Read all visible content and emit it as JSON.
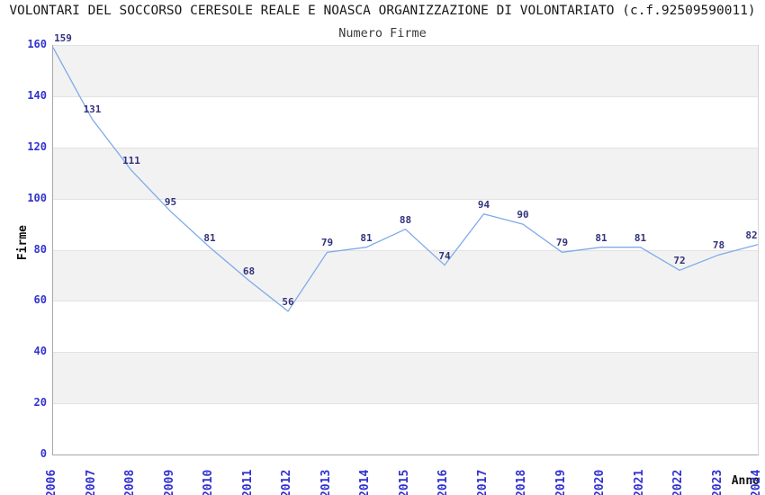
{
  "chart_data": {
    "type": "line",
    "title": "VOLONTARI DEL SOCCORSO CERESOLE REALE E NOASCA ORGANIZZAZIONE DI VOLONTARIATO (c.f.92509590011)",
    "subtitle": "Numero Firme",
    "xlabel": "Anno",
    "ylabel": "Firme",
    "categories": [
      "2006",
      "2007",
      "2008",
      "2009",
      "2010",
      "2011",
      "2012",
      "2013",
      "2014",
      "2015",
      "2016",
      "2017",
      "2018",
      "2019",
      "2020",
      "2021",
      "2022",
      "2023",
      "2024"
    ],
    "values": [
      159,
      131,
      111,
      95,
      81,
      68,
      56,
      79,
      81,
      88,
      74,
      94,
      90,
      79,
      81,
      81,
      72,
      78,
      82
    ],
    "ylim": [
      0,
      160
    ],
    "ytick_step": 20,
    "grid": "horizontal-alternating-bands",
    "legend": "none",
    "colors": {
      "line": "#7fabe8",
      "point_label": "#32327e",
      "tick_label": "#3232d0",
      "band_gray": "#f2f2f2",
      "band_white": "#ffffff",
      "gridline": "#e2e2e2",
      "axis": "#a8a8a8",
      "title": "#1a1a1a",
      "subtitle": "#3a3a3a"
    }
  }
}
